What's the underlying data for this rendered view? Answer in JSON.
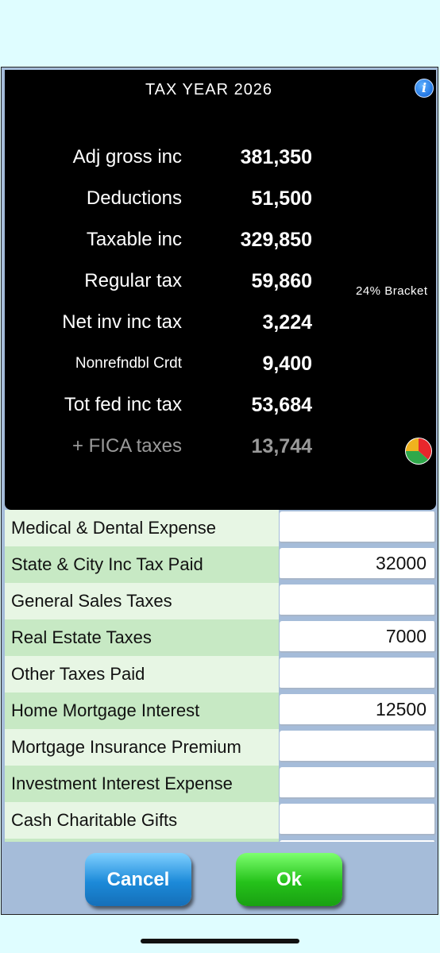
{
  "header": {
    "title": "TAX YEAR 2026",
    "info_icon": "info-icon"
  },
  "summary": {
    "rows": [
      {
        "label": "Adj gross inc",
        "value": "381,350"
      },
      {
        "label": "Deductions",
        "value": "51,500"
      },
      {
        "label": "Taxable inc",
        "value": "329,850"
      },
      {
        "label": "Regular tax",
        "value": "59,860"
      },
      {
        "label": "Net inv inc tax",
        "value": "3,224"
      },
      {
        "label": "Nonrefndbl Crdt",
        "value": "9,400"
      },
      {
        "label": "Tot fed inc tax",
        "value": "53,684"
      },
      {
        "label": "+  FICA taxes",
        "value": "13,744"
      }
    ],
    "bracket": "24% Bracket",
    "pie_icon": "pie-chart-icon",
    "pie_colors": [
      "#e8272c",
      "#2fa84a",
      "#f0b21e"
    ]
  },
  "deductions": [
    {
      "label": "Medical & Dental Expense",
      "value": ""
    },
    {
      "label": "State & City Inc Tax Paid",
      "value": "32000"
    },
    {
      "label": "General Sales Taxes",
      "value": ""
    },
    {
      "label": "Real Estate Taxes",
      "value": "7000"
    },
    {
      "label": "Other Taxes Paid",
      "value": ""
    },
    {
      "label": "Home Mortgage Interest",
      "value": "12500"
    },
    {
      "label": "Mortgage Insurance Premium",
      "value": ""
    },
    {
      "label": "Investment Interest Expense",
      "value": ""
    },
    {
      "label": "Cash Charitable Gifts",
      "value": ""
    }
  ],
  "buttons": {
    "cancel": "Cancel",
    "ok": "Ok"
  }
}
